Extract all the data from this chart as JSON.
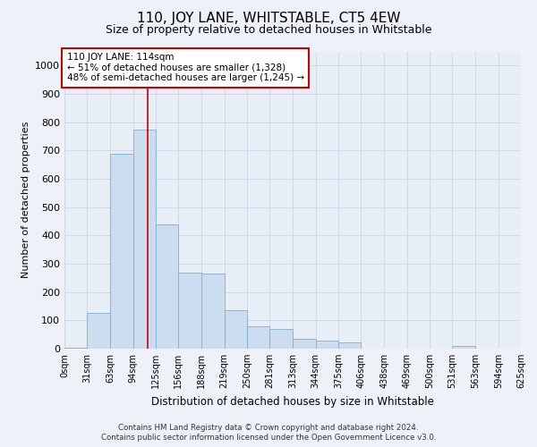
{
  "title": "110, JOY LANE, WHITSTABLE, CT5 4EW",
  "subtitle": "Size of property relative to detached houses in Whitstable",
  "xlabel": "Distribution of detached houses by size in Whitstable",
  "ylabel": "Number of detached properties",
  "footer_line1": "Contains HM Land Registry data © Crown copyright and database right 2024.",
  "footer_line2": "Contains public sector information licensed under the Open Government Licence v3.0.",
  "annotation_line1": "110 JOY LANE: 114sqm",
  "annotation_line2": "← 51% of detached houses are smaller (1,328)",
  "annotation_line3": "48% of semi-detached houses are larger (1,245) →",
  "bar_color": "#ccddf0",
  "bar_edge_color": "#7bafd4",
  "red_line_x": 114,
  "categories": [
    "0sqm",
    "31sqm",
    "63sqm",
    "94sqm",
    "125sqm",
    "156sqm",
    "188sqm",
    "219sqm",
    "250sqm",
    "281sqm",
    "313sqm",
    "344sqm",
    "375sqm",
    "406sqm",
    "438sqm",
    "469sqm",
    "500sqm",
    "531sqm",
    "563sqm",
    "594sqm",
    "625sqm"
  ],
  "bin_edges": [
    0,
    31,
    63,
    94,
    125,
    156,
    188,
    219,
    250,
    281,
    313,
    344,
    375,
    406,
    438,
    469,
    500,
    531,
    563,
    594,
    625
  ],
  "bar_heights": [
    2,
    125,
    690,
    775,
    440,
    270,
    265,
    135,
    80,
    70,
    35,
    28,
    22,
    0,
    0,
    0,
    0,
    8,
    0,
    0,
    0
  ],
  "ylim": [
    0,
    1050
  ],
  "yticks": [
    0,
    100,
    200,
    300,
    400,
    500,
    600,
    700,
    800,
    900,
    1000
  ],
  "background_color": "#eef2f8",
  "plot_background_color": "#e8eef6",
  "grid_color": "#d0d8e8",
  "title_fontsize": 11,
  "subtitle_fontsize": 9,
  "annotation_box_facecolor": "#ffffff",
  "annotation_box_edgecolor": "#cc0000"
}
